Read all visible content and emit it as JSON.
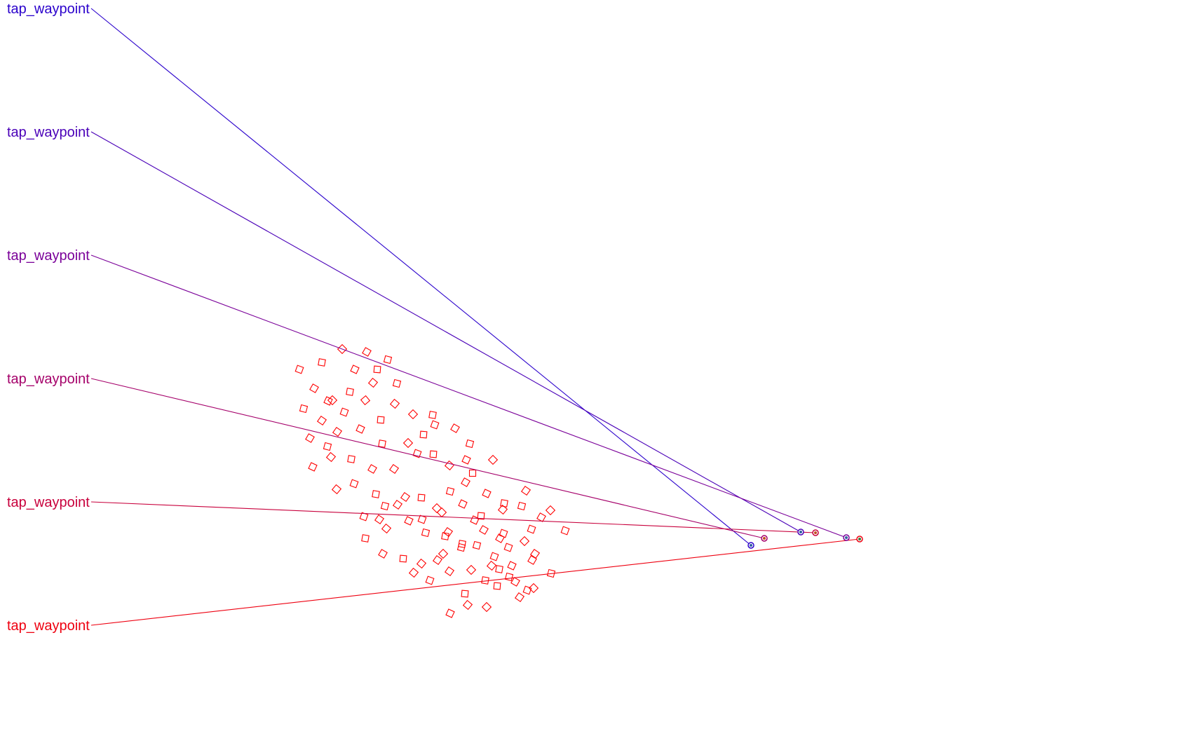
{
  "waypoint_label": "tap_waypoint",
  "colors": {
    "background": "#ffffff",
    "scatter_marker": "#ff0000",
    "waypoint_gradient": [
      "#2a00cc",
      "#4a00b8",
      "#7a0099",
      "#a5006a",
      "#c8003c",
      "#ee0010"
    ],
    "dot_fill_cool": "#3060a0",
    "dot_fill_warm": "#c05020",
    "dot_fill_green": "#3a7a3a"
  },
  "waypoints": [
    {
      "label": "tap_waypoint",
      "color": "#2a00cc",
      "icon": "target-dot-icon"
    },
    {
      "label": "tap_waypoint",
      "color": "#4a00b8",
      "icon": "target-dot-icon"
    },
    {
      "label": "tap_waypoint",
      "color": "#7a0099",
      "icon": "target-dot-icon"
    },
    {
      "label": "tap_waypoint",
      "color": "#a5006a",
      "icon": "target-dot-icon"
    },
    {
      "label": "tap_waypoint",
      "color": "#c8003c",
      "icon": "target-dot-icon"
    },
    {
      "label": "tap_waypoint",
      "color": "#ee0010",
      "icon": "target-dot-icon"
    }
  ],
  "scatter": {
    "marker_shape": "rotated-square",
    "marker_icon": "diamond-outline-icon"
  }
}
